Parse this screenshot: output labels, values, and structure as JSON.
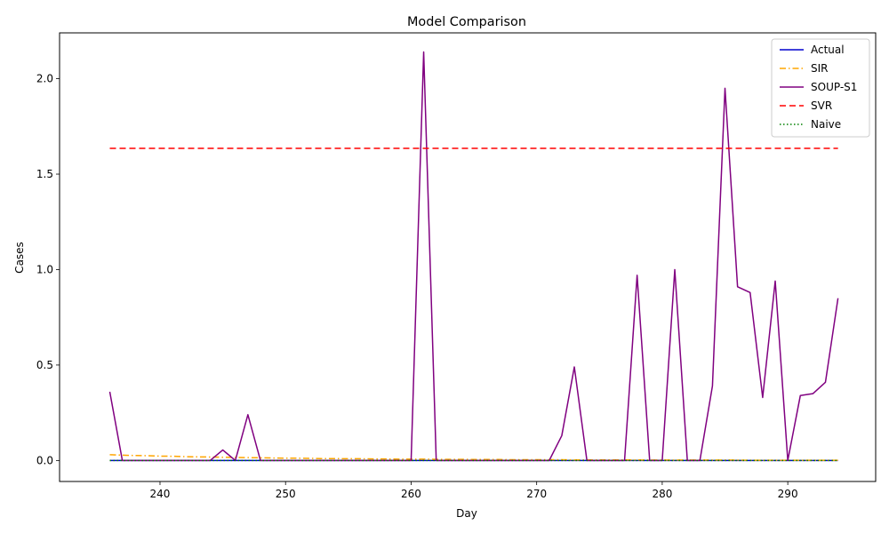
{
  "chart_data": {
    "type": "line",
    "title": "Model Comparison",
    "xlabel": "Day",
    "ylabel": "Cases",
    "xlim": [
      232,
      297
    ],
    "ylim": [
      -0.11,
      2.24
    ],
    "x_ticks": [
      240,
      250,
      260,
      270,
      280,
      290
    ],
    "y_ticks": [
      0.0,
      0.5,
      1.0,
      1.5,
      2.0
    ],
    "y_tick_labels": [
      "0.0",
      "0.5",
      "1.0",
      "1.5",
      "2.0"
    ],
    "grid": false,
    "legend_position": "top-right",
    "x": [
      236,
      237,
      238,
      239,
      240,
      241,
      242,
      243,
      244,
      245,
      246,
      247,
      248,
      249,
      250,
      251,
      252,
      253,
      254,
      255,
      256,
      257,
      258,
      259,
      260,
      261,
      262,
      263,
      264,
      265,
      266,
      267,
      268,
      269,
      270,
      271,
      272,
      273,
      274,
      275,
      276,
      277,
      278,
      279,
      280,
      281,
      282,
      283,
      284,
      285,
      286,
      287,
      288,
      289,
      290,
      291,
      292,
      293,
      294
    ],
    "series": [
      {
        "name": "Actual",
        "color": "#0000cd",
        "dash": "solid",
        "values": [
          0,
          0,
          0,
          0,
          0,
          0,
          0,
          0,
          0,
          0,
          0,
          0,
          0,
          0,
          0,
          0,
          0,
          0,
          0,
          0,
          0,
          0,
          0,
          0,
          0,
          0,
          0,
          0,
          0,
          0,
          0,
          0,
          0,
          0,
          0,
          0,
          0,
          0,
          0,
          0,
          0,
          0,
          0,
          0,
          0,
          0,
          0,
          0,
          0,
          0,
          0,
          0,
          0,
          0,
          0,
          0,
          0,
          0,
          0
        ]
      },
      {
        "name": "SIR",
        "color": "#ffa500",
        "dash": "dashdot",
        "values": [
          0.03,
          0.028,
          0.026,
          0.025,
          0.023,
          0.022,
          0.02,
          0.019,
          0.018,
          0.017,
          0.016,
          0.015,
          0.014,
          0.013,
          0.012,
          0.012,
          0.011,
          0.01,
          0.01,
          0.009,
          0.009,
          0.008,
          0.008,
          0.007,
          0.007,
          0.007,
          0.006,
          0.006,
          0.006,
          0.005,
          0.005,
          0.005,
          0.004,
          0.004,
          0.004,
          0.004,
          0.004,
          0.003,
          0.003,
          0.003,
          0.003,
          0.003,
          0.003,
          0.002,
          0.002,
          0.002,
          0.002,
          0.002,
          0.002,
          0.002,
          0.002,
          0.001,
          0.001,
          0.001,
          0.001,
          0.001,
          0.001,
          0.001,
          0.001
        ]
      },
      {
        "name": "SOUP-S1",
        "color": "#800080",
        "dash": "solid",
        "values": [
          0.36,
          0,
          0,
          0,
          0,
          0,
          0,
          0,
          0,
          0.055,
          0,
          0.24,
          0,
          0,
          0,
          0,
          0,
          0,
          0,
          0,
          0,
          0,
          0,
          0,
          0,
          2.14,
          0,
          0,
          0,
          0,
          0,
          0,
          0,
          0,
          0,
          0,
          0.13,
          0.49,
          0,
          0,
          0,
          0,
          0.97,
          0,
          0,
          1.0,
          0,
          0,
          0.39,
          1.95,
          0.91,
          0.88,
          0.33,
          0.94,
          0,
          0.34,
          0.35,
          0.41,
          0.85
        ]
      },
      {
        "name": "SVR",
        "color": "#ff0000",
        "dash": "dashed",
        "values": [
          1.635,
          1.635,
          1.635,
          1.635,
          1.635,
          1.635,
          1.635,
          1.635,
          1.635,
          1.635,
          1.635,
          1.635,
          1.635,
          1.635,
          1.635,
          1.635,
          1.635,
          1.635,
          1.635,
          1.635,
          1.635,
          1.635,
          1.635,
          1.635,
          1.635,
          1.635,
          1.635,
          1.635,
          1.635,
          1.635,
          1.635,
          1.635,
          1.635,
          1.635,
          1.635,
          1.635,
          1.635,
          1.635,
          1.635,
          1.635,
          1.635,
          1.635,
          1.635,
          1.635,
          1.635,
          1.635,
          1.635,
          1.635,
          1.635,
          1.635,
          1.635,
          1.635,
          1.635,
          1.635,
          1.635,
          1.635,
          1.635,
          1.635,
          1.635
        ]
      },
      {
        "name": "Naive",
        "color": "#008000",
        "dash": "dotted",
        "values": [
          0,
          0,
          0,
          0,
          0,
          0,
          0,
          0,
          0,
          0,
          0,
          0,
          0,
          0,
          0,
          0,
          0,
          0,
          0,
          0,
          0,
          0,
          0,
          0,
          0,
          0,
          0,
          0,
          0,
          0,
          0,
          0,
          0,
          0,
          0,
          0,
          0,
          0,
          0,
          0,
          0,
          0,
          0,
          0,
          0,
          0,
          0,
          0,
          0,
          0,
          0,
          0,
          0,
          0,
          0,
          0,
          0,
          0,
          0
        ]
      }
    ]
  }
}
